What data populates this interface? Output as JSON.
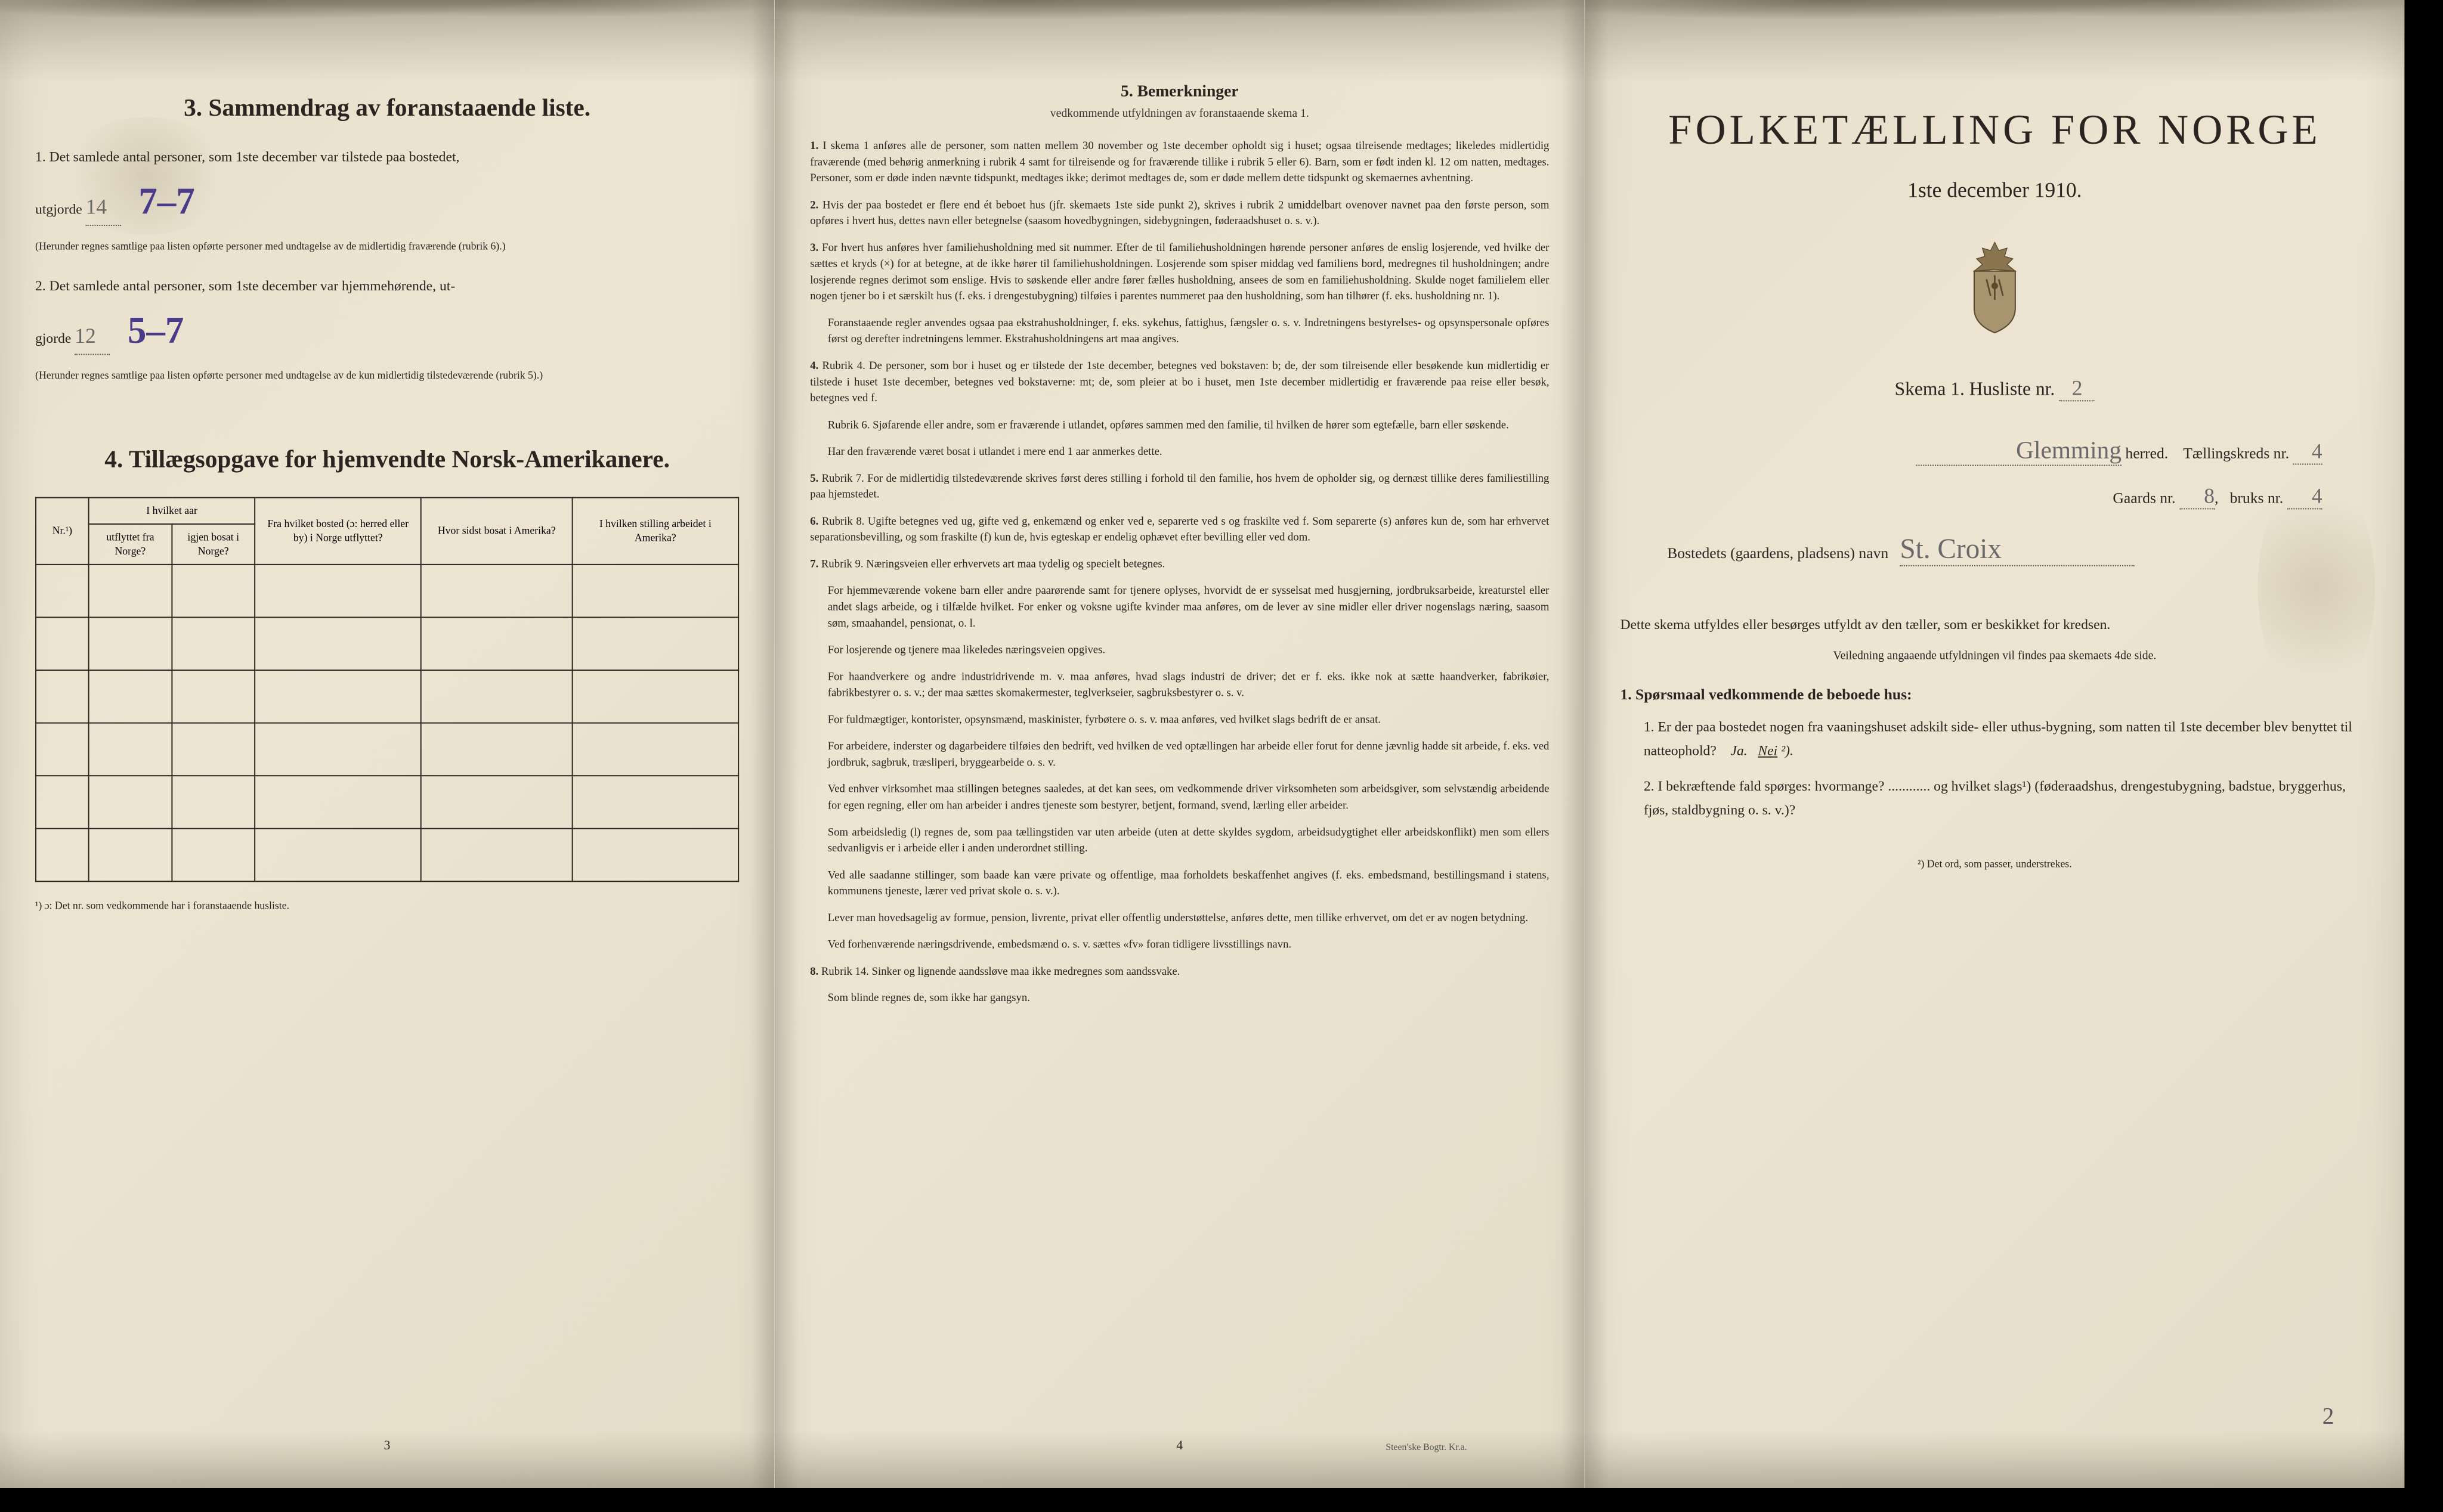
{
  "colors": {
    "paper_bg": "#ede5d2",
    "text": "#2a2520",
    "handwritten_ink": "#4a3a8a",
    "pencil": "#6a6a6a",
    "border": "#000000"
  },
  "page_left": {
    "section3": {
      "title": "3.   Sammendrag av foranstaaende liste.",
      "item1": {
        "text_start": "1. Det samlede antal personer, som 1ste december var tilstede paa bostedet,",
        "text_mid": "utgjorde",
        "value_original": "14",
        "value_corrected": "7–7",
        "note": "(Herunder regnes samtlige paa listen opførte personer med undtagelse av de midlertidig fraværende (rubrik 6).)"
      },
      "item2": {
        "text_start": "2. Det samlede antal personer, som 1ste december var hjemmehørende, ut-",
        "text_mid": "gjorde",
        "value_original": "12",
        "value_corrected": "5–7",
        "note": "(Herunder regnes samtlige paa listen opførte personer med undtagelse av de kun midlertidig tilstedeværende (rubrik 5).)"
      }
    },
    "section4": {
      "title": "4.   Tillægsopgave for hjemvendte Norsk-Amerikanere.",
      "table": {
        "headers": {
          "col1": "Nr.¹)",
          "col2_top": "I hvilket aar",
          "col2a": "utflyttet fra Norge?",
          "col2b": "igjen bosat i Norge?",
          "col3": "Fra hvilket bosted (ɔ: herred eller by) i Norge utflyttet?",
          "col4": "Hvor sidst bosat i Amerika?",
          "col5": "I hvilken stilling arbeidet i Amerika?"
        },
        "empty_rows": 6
      },
      "footnote": "¹) ɔ: Det nr. som vedkommende har i foranstaaende husliste."
    },
    "page_number": "3"
  },
  "page_middle": {
    "section5": {
      "title": "5.   Bemerkninger",
      "subtitle": "vedkommende utfyldningen av foranstaaende skema 1.",
      "remarks": [
        {
          "num": "1.",
          "text": "I skema 1 anføres alle de personer, som natten mellem 30 november og 1ste december opholdt sig i huset; ogsaa tilreisende medtages; likeledes midlertidig fraværende (med behørig anmerkning i rubrik 4 samt for tilreisende og for fraværende tillike i rubrik 5 eller 6). Barn, som er født inden kl. 12 om natten, medtages. Personer, som er døde inden nævnte tidspunkt, medtages ikke; derimot medtages de, som er døde mellem dette tidspunkt og skemaernes avhentning."
        },
        {
          "num": "2.",
          "text": "Hvis der paa bostedet er flere end ét beboet hus (jfr. skemaets 1ste side punkt 2), skrives i rubrik 2 umiddelbart ovenover navnet paa den første person, som opføres i hvert hus, dettes navn eller betegnelse (saasom hovedbygningen, sidebygningen, føderaadshuset o. s. v.)."
        },
        {
          "num": "3.",
          "text": "For hvert hus anføres hver familiehusholdning med sit nummer. Efter de til familiehusholdningen hørende personer anføres de enslig losjerende, ved hvilke der sættes et kryds (×) for at betegne, at de ikke hører til familiehusholdningen. Losjerende som spiser middag ved familiens bord, medregnes til husholdningen; andre losjerende regnes derimot som enslige. Hvis to søskende eller andre fører fælles husholdning, ansees de som en familiehusholdning. Skulde noget familielem eller nogen tjener bo i et særskilt hus (f. eks. i drengestubygning) tilføies i parentes nummeret paa den husholdning, som han tilhører (f. eks. husholdning nr. 1).",
          "sub": "Foranstaaende regler anvendes ogsaa paa ekstrahusholdninger, f. eks. sykehus, fattighus, fængsler o. s. v. Indretningens bestyrelses- og opsynspersonale opføres først og derefter indretningens lemmer. Ekstrahusholdningens art maa angives."
        },
        {
          "num": "4.",
          "text": "Rubrik 4. De personer, som bor i huset og er tilstede der 1ste december, betegnes ved bokstaven: b; de, der som tilreisende eller besøkende kun midlertidig er tilstede i huset 1ste december, betegnes ved bokstaverne: mt; de, som pleier at bo i huset, men 1ste december midlertidig er fraværende paa reise eller besøk, betegnes ved f.",
          "sub": "Rubrik 6. Sjøfarende eller andre, som er fraværende i utlandet, opføres sammen med den familie, til hvilken de hører som egtefælle, barn eller søskende.",
          "sub2": "Har den fraværende været bosat i utlandet i mere end 1 aar anmerkes dette."
        },
        {
          "num": "5.",
          "text": "Rubrik 7. For de midlertidig tilstedeværende skrives først deres stilling i forhold til den familie, hos hvem de opholder sig, og dernæst tillike deres familiestilling paa hjemstedet."
        },
        {
          "num": "6.",
          "text": "Rubrik 8. Ugifte betegnes ved ug, gifte ved g, enkemænd og enker ved e, separerte ved s og fraskilte ved f. Som separerte (s) anføres kun de, som har erhvervet separationsbevilling, og som fraskilte (f) kun de, hvis egteskap er endelig ophævet efter bevilling eller ved dom."
        },
        {
          "num": "7.",
          "text": "Rubrik 9. Næringsveien eller erhvervets art maa tydelig og specielt betegnes.",
          "sub": "For hjemmeværende vokene barn eller andre paarørende samt for tjenere oplyses, hvorvidt de er sysselsat med husgjerning, jordbruksarbeide, kreaturstel eller andet slags arbeide, og i tilfælde hvilket. For enker og voksne ugifte kvinder maa anføres, om de lever av sine midler eller driver nogenslags næring, saasom søm, smaahandel, pensionat, o. l.",
          "sub2": "For losjerende og tjenere maa likeledes næringsveien opgives.",
          "sub3": "For haandverkere og andre industridrivende m. v. maa anføres, hvad slags industri de driver; det er f. eks. ikke nok at sætte haandverker, fabrikøier, fabrikbestyrer o. s. v.; der maa sættes skomakermester, teglverkseier, sagbruksbestyrer o. s. v.",
          "sub4": "For fuldmægtiger, kontorister, opsynsmænd, maskinister, fyrbøtere o. s. v. maa anføres, ved hvilket slags bedrift de er ansat.",
          "sub5": "For arbeidere, inderster og dagarbeidere tilføies den bedrift, ved hvilken de ved optællingen har arbeide eller forut for denne jævnlig hadde sit arbeide, f. eks. ved jordbruk, sagbruk, træsliperi, bryggearbeide o. s. v.",
          "sub6": "Ved enhver virksomhet maa stillingen betegnes saaledes, at det kan sees, om vedkommende driver virksomheten som arbeidsgiver, som selvstændig arbeidende for egen regning, eller om han arbeider i andres tjeneste som bestyrer, betjent, formand, svend, lærling eller arbeider.",
          "sub7": "Som arbeidsledig (l) regnes de, som paa tællingstiden var uten arbeide (uten at dette skyldes sygdom, arbeidsudygtighet eller arbeidskonflikt) men som ellers sedvanligvis er i arbeide eller i anden underordnet stilling.",
          "sub8": "Ved alle saadanne stillinger, som baade kan være private og offentlige, maa forholdets beskaffenhet angives (f. eks. embedsmand, bestillingsmand i statens, kommunens tjeneste, lærer ved privat skole o. s. v.).",
          "sub9": "Lever man hovedsagelig av formue, pension, livrente, privat eller offentlig understøttelse, anføres dette, men tillike erhvervet, om det er av nogen betydning.",
          "sub10": "Ved forhenværende næringsdrivende, embedsmænd o. s. v. sættes «fv» foran tidligere livsstillings navn."
        },
        {
          "num": "8.",
          "text": "Rubrik 14. Sinker og lignende aandssløve maa ikke medregnes som aandssvake.",
          "sub": "Som blinde regnes de, som ikke har gangsyn."
        }
      ]
    },
    "page_number": "4",
    "printer": "Steen'ske Bogtr. Kr.a."
  },
  "page_right": {
    "main_title": "FOLKETÆLLING FOR NORGE",
    "date": "1ste december 1910.",
    "skema_label": "Skema 1.   Husliste nr.",
    "skema_nr": "2",
    "herred_label": "herred.",
    "herred_value": "Glemming",
    "tellingskreds_label": "Tællingskreds nr.",
    "tellingskreds_value": "4",
    "gaards_label": "Gaards nr.",
    "gaards_value": "8",
    "bruks_label": "bruks nr.",
    "bruks_value": "4",
    "bosted_label": "Bostedets (gaardens, pladsens) navn",
    "bosted_value": "St. Croix",
    "instructions_text": "Dette skema utfyldes eller besørges utfyldt av den tæller, som er beskikket for kredsen.",
    "instructions_subtitle": "Veiledning angaaende utfyldningen vil findes paa skemaets 4de side.",
    "question_heading": "1. Spørsmaal vedkommende de beboede hus:",
    "question1": "1. Er der paa bostedet nogen fra vaaningshuset adskilt side- eller uthus-bygning, som natten til 1ste december blev benyttet til natteophold?",
    "question1_answer": "Ja.   Nei ²).",
    "question2": "2. I bekræftende fald spørges: hvormange? ............ og hvilket slags¹) (føderaadshus, drengestubygning, badstue, bryggerhus, fjøs, staldbygning o. s. v.)?",
    "footnote_right": "²) Det ord, som passer, understrekes.",
    "page_marker": "2"
  }
}
